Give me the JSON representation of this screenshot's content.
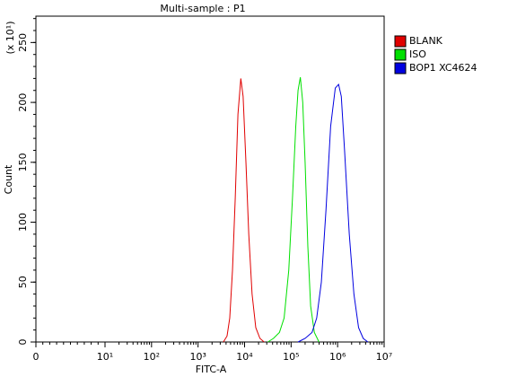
{
  "chart_data": {
    "type": "line",
    "title": "Multi-sample : P1",
    "x_label": "FITC-A",
    "y_label": "Count",
    "y_multiplier": "(x 10¹)",
    "xscale": "biexponential",
    "xlim": [
      0,
      10000000
    ],
    "xticks": [
      0,
      {
        "value": 10,
        "label": "10¹"
      },
      {
        "value": 100,
        "label": "10²"
      },
      {
        "value": 1000,
        "label": "10³"
      },
      {
        "value": 10000,
        "label": "10⁴"
      },
      {
        "value": 100000,
        "label": "10⁵"
      },
      {
        "value": 1000000,
        "label": "10⁶"
      },
      {
        "value": 10000000,
        "label": "10⁷"
      }
    ],
    "ylim": [
      0,
      272
    ],
    "yticks": [
      0,
      50,
      100,
      150,
      200,
      250
    ],
    "legend": "right",
    "series": [
      {
        "name": "BLANK",
        "color": "#e00000",
        "x": [
          3500,
          4200,
          4800,
          5500,
          6300,
          7200,
          8300,
          9300,
          10700,
          12300,
          14500,
          17400,
          21400,
          26300
        ],
        "values": [
          0,
          5,
          20,
          60,
          120,
          190,
          220,
          205,
          150,
          90,
          40,
          12,
          3,
          0
        ]
      },
      {
        "name": "ISO",
        "color": "#00e000",
        "x": [
          31600,
          41700,
          56200,
          70800,
          89100,
          107000,
          126000,
          141000,
          158000,
          178000,
          200000,
          229000,
          263000,
          316000,
          398000
        ],
        "values": [
          0,
          3,
          8,
          20,
          60,
          120,
          180,
          210,
          221,
          200,
          150,
          80,
          30,
          8,
          0
        ]
      },
      {
        "name": "BOP1 XC4624",
        "color": "#0000e0",
        "x": [
          141000,
          200000,
          282000,
          355000,
          447000,
          562000,
          708000,
          891000,
          1050000,
          1200000,
          1410000,
          1780000,
          2240000,
          2820000,
          3550000,
          4470000
        ],
        "values": [
          0,
          3,
          8,
          20,
          50,
          110,
          180,
          212,
          215,
          205,
          160,
          90,
          40,
          12,
          3,
          0
        ]
      }
    ]
  }
}
